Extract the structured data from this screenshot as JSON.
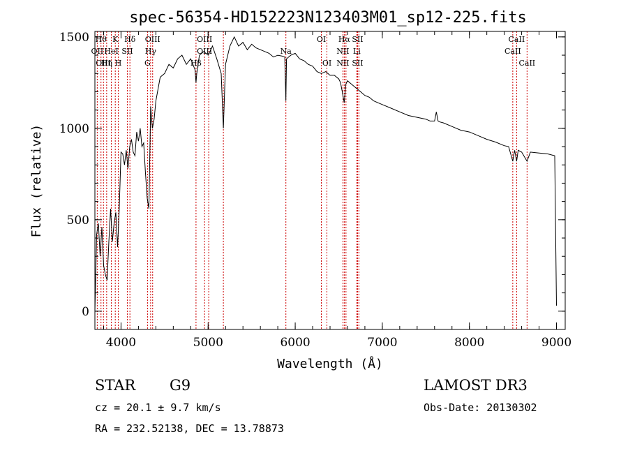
{
  "chart_data": {
    "type": "line",
    "title": "spec-56354-HD152223N123403M01_sp12-225.fits",
    "xlabel": "Wavelength (Å)",
    "ylabel": "Flux (relative)",
    "xlim": [
      3700,
      9100
    ],
    "ylim": [
      -100,
      1530
    ],
    "x_ticks": [
      4000,
      5000,
      6000,
      7000,
      8000,
      9000
    ],
    "y_ticks": [
      0,
      500,
      1000,
      1500
    ],
    "grid": false,
    "series": [
      {
        "name": "flux",
        "x": [
          3700,
          3720,
          3740,
          3760,
          3780,
          3800,
          3820,
          3840,
          3860,
          3880,
          3900,
          3920,
          3940,
          3960,
          3980,
          4000,
          4020,
          4040,
          4060,
          4080,
          4100,
          4120,
          4140,
          4160,
          4180,
          4200,
          4220,
          4240,
          4260,
          4280,
          4300,
          4320,
          4340,
          4360,
          4380,
          4400,
          4450,
          4500,
          4550,
          4600,
          4650,
          4700,
          4750,
          4800,
          4850,
          4861,
          4870,
          4900,
          4950,
          5000,
          5050,
          5100,
          5150,
          5175,
          5200,
          5250,
          5300,
          5350,
          5400,
          5450,
          5500,
          5550,
          5600,
          5650,
          5700,
          5750,
          5800,
          5850,
          5880,
          5893,
          5900,
          5950,
          6000,
          6050,
          6100,
          6150,
          6200,
          6250,
          6300,
          6350,
          6400,
          6450,
          6500,
          6520,
          6540,
          6563,
          6580,
          6600,
          6650,
          6700,
          6750,
          6800,
          6850,
          6900,
          6950,
          7000,
          7100,
          7200,
          7300,
          7400,
          7500,
          7550,
          7600,
          7620,
          7640,
          7660,
          7700,
          7800,
          7900,
          8000,
          8100,
          8200,
          8300,
          8400,
          8450,
          8498,
          8520,
          8542,
          8560,
          8600,
          8662,
          8700,
          8800,
          8900,
          8980,
          9000
        ],
        "values": [
          0,
          420,
          480,
          300,
          460,
          250,
          200,
          170,
          380,
          560,
          380,
          480,
          540,
          350,
          560,
          870,
          860,
          800,
          880,
          780,
          900,
          940,
          870,
          850,
          980,
          930,
          1000,
          900,
          920,
          760,
          620,
          560,
          1120,
          1000,
          1050,
          1150,
          1280,
          1300,
          1350,
          1330,
          1380,
          1400,
          1350,
          1380,
          1320,
          1250,
          1300,
          1400,
          1420,
          1400,
          1450,
          1380,
          1300,
          1000,
          1350,
          1450,
          1500,
          1450,
          1470,
          1430,
          1460,
          1440,
          1430,
          1420,
          1410,
          1390,
          1400,
          1395,
          1390,
          1150,
          1380,
          1400,
          1410,
          1380,
          1370,
          1350,
          1340,
          1310,
          1300,
          1310,
          1290,
          1290,
          1270,
          1250,
          1200,
          1140,
          1240,
          1260,
          1240,
          1220,
          1200,
          1180,
          1170,
          1150,
          1140,
          1130,
          1110,
          1090,
          1070,
          1060,
          1050,
          1040,
          1040,
          1090,
          1040,
          1035,
          1030,
          1010,
          990,
          980,
          960,
          940,
          925,
          905,
          900,
          820,
          880,
          820,
          880,
          870,
          820,
          870,
          865,
          860,
          850,
          30
        ]
      }
    ],
    "line_markers": [
      {
        "wavelength": 3727,
        "labels": [
          "OII"
        ],
        "row": [
          1
        ]
      },
      {
        "wavelength": 3770,
        "labels": [
          "Hθ"
        ],
        "row": [
          0
        ]
      },
      {
        "wavelength": 3798,
        "labels": [
          "OIII"
        ],
        "row": [
          2
        ]
      },
      {
        "wavelength": 3835,
        "labels": [
          "Hη"
        ],
        "row": [
          2
        ]
      },
      {
        "wavelength": 3889,
        "labels": [
          "HeI"
        ],
        "row": [
          1
        ]
      },
      {
        "wavelength": 3934,
        "labels": [
          "K"
        ],
        "row": [
          0
        ]
      },
      {
        "wavelength": 3969,
        "labels": [
          "H"
        ],
        "row": [
          2
        ]
      },
      {
        "wavelength": 4072,
        "labels": [
          "SII"
        ],
        "row": [
          1
        ]
      },
      {
        "wavelength": 4102,
        "labels": [
          "Hδ"
        ],
        "row": [
          0
        ]
      },
      {
        "wavelength": 4304,
        "labels": [
          "G"
        ],
        "row": [
          2
        ]
      },
      {
        "wavelength": 4340,
        "labels": [
          "Hγ"
        ],
        "row": [
          1
        ]
      },
      {
        "wavelength": 4363,
        "labels": [
          "OIII"
        ],
        "row": [
          0
        ]
      },
      {
        "wavelength": 4861,
        "labels": [
          "Hβ"
        ],
        "row": [
          2
        ]
      },
      {
        "wavelength": 4959,
        "labels": [
          "OIII"
        ],
        "row": [
          0,
          1
        ]
      },
      {
        "wavelength": 5007,
        "labels": [],
        "row": []
      },
      {
        "wavelength": 5175,
        "labels": [],
        "row": []
      },
      {
        "wavelength": 5893,
        "labels": [
          "Na"
        ],
        "row": [
          1
        ]
      },
      {
        "wavelength": 6300,
        "labels": [
          "OI"
        ],
        "row": [
          0
        ]
      },
      {
        "wavelength": 6364,
        "labels": [
          "OI"
        ],
        "row": [
          2
        ]
      },
      {
        "wavelength": 6548,
        "labels": [
          "NII"
        ],
        "row": [
          1,
          2
        ]
      },
      {
        "wavelength": 6563,
        "labels": [
          "Hα"
        ],
        "row": [
          0
        ]
      },
      {
        "wavelength": 6583,
        "labels": [],
        "row": []
      },
      {
        "wavelength": 6707,
        "labels": [
          "Li"
        ],
        "row": [
          1
        ]
      },
      {
        "wavelength": 6716,
        "labels": [
          "SII"
        ],
        "row": [
          0,
          2
        ]
      },
      {
        "wavelength": 6731,
        "labels": [],
        "row": []
      },
      {
        "wavelength": 8498,
        "labels": [
          "CaII"
        ],
        "row": [
          1
        ]
      },
      {
        "wavelength": 8542,
        "labels": [
          "CaII"
        ],
        "row": [
          0
        ]
      },
      {
        "wavelength": 8662,
        "labels": [
          "CaII"
        ],
        "row": [
          2
        ]
      }
    ]
  },
  "info": {
    "object_class": "STAR",
    "subclass": "G9",
    "survey": "LAMOST DR3",
    "redshift": "cz = 20.1 ± 9.7 km/s",
    "obs_date": "Obs-Date: 20130302",
    "coords": "RA = 232.52138, DEC =  13.78873"
  },
  "colors": {
    "spectrum": "#000000",
    "line_marker": "#cc0000",
    "axes": "#000000",
    "background": "#ffffff"
  }
}
